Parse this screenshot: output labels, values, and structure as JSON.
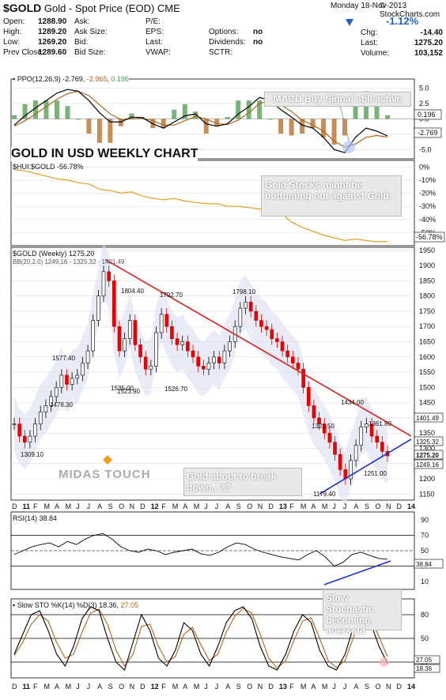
{
  "header": {
    "symbol": "$GOLD",
    "description": "Gold - Spot Price (EOD)",
    "exchange": "CME",
    "date": "Monday  18-Nov-2013",
    "brand": "© StockCharts.com",
    "change_pct": "-1.12%",
    "arrow": "down-triangle-icon"
  },
  "quote": {
    "rows": [
      [
        {
          "l": "Open:",
          "v": "1288.90"
        },
        {
          "l": "Ask:",
          "v": ""
        },
        {
          "l": "P/E:",
          "v": ""
        },
        {
          "l": "",
          "v": ""
        }
      ],
      [
        {
          "l": "High:",
          "v": "1289.20"
        },
        {
          "l": "Ask Size:",
          "v": ""
        },
        {
          "l": "EPS:",
          "v": ""
        },
        {
          "l": "Options:",
          "v": "no"
        }
      ],
      [
        {
          "l": "Low:",
          "v": "1269.20"
        },
        {
          "l": "Bid:",
          "v": ""
        },
        {
          "l": "Last:",
          "v": ""
        },
        {
          "l": "Dividends:",
          "v": "no"
        }
      ],
      [
        {
          "l": "Prev Close:",
          "v": "1289.60"
        },
        {
          "l": "Bid Size:",
          "v": ""
        },
        {
          "l": "VWAP:",
          "v": ""
        },
        {
          "l": "SCTR:",
          "v": ""
        }
      ]
    ],
    "right": [
      {
        "l": "Chg:",
        "v": "-14.40"
      },
      {
        "l": "Last:",
        "v": "1275.20"
      },
      {
        "l": "Volume:",
        "v": "103,152"
      }
    ]
  },
  "chart_data": [
    {
      "type": "line",
      "title": "PPO(12,26,9) -2.769, -2.965, 0.196",
      "legend": {
        "ppo": "-2.769",
        "signal": "-2.965",
        "hist": "0.196"
      },
      "y_ticks": [
        "5.0",
        "2.5",
        "0.0",
        "-2.5",
        "-5.0"
      ],
      "ylim": [
        -6.5,
        6.5
      ],
      "right_labels": [
        "0.196",
        "-2.769"
      ],
      "annotation": "MACD Buy Signal still active",
      "series": [
        {
          "name": "PPO",
          "color": "#000000",
          "values": [
            -1,
            0.5,
            1.8,
            3,
            4.2,
            4.8,
            4.5,
            3,
            1,
            -0.5,
            -0.5,
            0.3,
            0.2,
            -0.8,
            -1.5,
            -0.5,
            0.5,
            0.8,
            -0.8,
            -1.2,
            -0.8,
            0.8,
            2,
            3.5,
            3,
            1.5,
            0.3,
            -1,
            -1.5,
            -3,
            -5,
            -5.5,
            -3,
            -1.5,
            -2,
            -2.769
          ]
        },
        {
          "name": "Signal",
          "color": "#b5651d",
          "values": [
            -1.2,
            -0.3,
            0.8,
            2,
            3.2,
            4.1,
            4.5,
            3.8,
            2.3,
            0.8,
            -0.1,
            0,
            0.1,
            -0.3,
            -1,
            -1,
            -0.3,
            0.4,
            0,
            -0.8,
            -0.9,
            -0.2,
            1,
            2.5,
            3,
            2.3,
            1.2,
            -0.2,
            -1,
            -2,
            -3.6,
            -4.6,
            -4.1,
            -3,
            -2.7,
            -2.965
          ]
        }
      ]
    },
    {
      "type": "line",
      "title": "$HUI:$GOLD -56.78%",
      "y_ticks": [
        "0%",
        "-10%",
        "-20%",
        "-30%",
        "-40%",
        "-50%"
      ],
      "ylim": [
        -60,
        5
      ],
      "right_label": "-56.78%",
      "annotation": "Gold Stocks might be bottoming out against Gold.",
      "values": [
        -2,
        -3,
        -5,
        -7,
        -9,
        -10,
        -12,
        -13,
        -17,
        -18,
        -20,
        -19,
        -22,
        -24,
        -25,
        -24,
        -26,
        -27,
        -28,
        -28,
        -30,
        -30,
        -31,
        -32,
        -33,
        -35,
        -42,
        -46,
        -49,
        -52,
        -54,
        -56,
        -55,
        -56,
        -57,
        -56.78
      ]
    },
    {
      "type": "candlestick",
      "title": "$GOLD (Weekly) 1275.20",
      "subtitle": "BB(20,2.0) 1249.16 - 1325.32 - 1401.49",
      "ylim": [
        1130,
        1960
      ],
      "y_ticks": [
        "1950",
        "1900",
        "1850",
        "1800",
        "1750",
        "1700",
        "1650",
        "1600",
        "1550",
        "1500",
        "1450",
        "1400",
        "1350",
        "1300",
        "1250",
        "1200",
        "1150"
      ],
      "right_labels": [
        "1401.49",
        "1325.32",
        "1275.20",
        "1249.16"
      ],
      "price_labels": [
        "1309.10",
        "1577.40",
        "1478.30",
        "1804.40",
        "1535.00",
        "1792.70",
        "1523.90",
        "1526.70",
        "1798.10",
        "1321.50",
        "1434.00",
        "1361.80",
        "1251.00",
        "1179.40"
      ],
      "watermark": "MIDAS TOUCH",
      "annotation": "Gold about to break down.. ??",
      "x_ticks": [
        "D",
        "11",
        "F",
        "M",
        "A",
        "M",
        "J",
        "J",
        "A",
        "S",
        "O",
        "N",
        "D",
        "12",
        "F",
        "M",
        "A",
        "M",
        "J",
        "J",
        "A",
        "S",
        "O",
        "N",
        "D",
        "13",
        "F",
        "M",
        "A",
        "M",
        "J",
        "J",
        "A",
        "S",
        "O",
        "N",
        "D",
        "14"
      ],
      "closes": [
        1380,
        1340,
        1320,
        1340,
        1380,
        1420,
        1440,
        1470,
        1500,
        1540,
        1510,
        1530,
        1540,
        1580,
        1620,
        1720,
        1800,
        1880,
        1850,
        1700,
        1620,
        1660,
        1720,
        1640,
        1600,
        1560,
        1570,
        1680,
        1740,
        1700,
        1660,
        1640,
        1650,
        1620,
        1600,
        1570,
        1560,
        1580,
        1600,
        1580,
        1620,
        1650,
        1700,
        1760,
        1780,
        1750,
        1720,
        1700,
        1690,
        1660,
        1650,
        1620,
        1600,
        1580,
        1560,
        1500,
        1440,
        1400,
        1380,
        1350,
        1320,
        1280,
        1230,
        1200,
        1260,
        1310,
        1370,
        1380,
        1340,
        1320,
        1290,
        1275.2
      ]
    },
    {
      "type": "line",
      "title": "RSI(14) 38.84",
      "ylim": [
        0,
        100
      ],
      "y_ticks": [
        "90",
        "70",
        "50",
        "30",
        "10"
      ],
      "right_label": "38.84",
      "values": [
        45,
        50,
        55,
        58,
        60,
        55,
        62,
        58,
        65,
        70,
        72,
        65,
        55,
        50,
        48,
        52,
        50,
        45,
        48,
        50,
        52,
        46,
        44,
        48,
        55,
        60,
        58,
        52,
        48,
        45,
        42,
        40,
        38,
        45,
        50,
        42,
        30,
        35,
        45,
        48,
        44,
        40,
        38.84
      ]
    },
    {
      "type": "line",
      "title": "Slow STO %K(14) %D(3) 18.36, 27.05",
      "legend": {
        "k": "18.36",
        "d": "27.05"
      },
      "ylim": [
        0,
        100
      ],
      "y_ticks": [
        "80",
        "50",
        "20"
      ],
      "right_labels": [
        "27.05",
        "18.36"
      ],
      "annotation": "Slow Stochastic becoming oversold",
      "series": [
        {
          "name": "%K",
          "color": "#000000",
          "values": [
            30,
            55,
            80,
            85,
            60,
            30,
            15,
            40,
            75,
            90,
            85,
            50,
            20,
            10,
            45,
            80,
            60,
            25,
            15,
            35,
            70,
            60,
            30,
            15,
            40,
            70,
            85,
            90,
            75,
            40,
            15,
            10,
            30,
            60,
            80,
            70,
            35,
            15,
            10,
            30,
            65,
            85,
            70,
            40,
            18.36
          ]
        },
        {
          "name": "%D",
          "color": "#b5651d",
          "values": [
            28,
            45,
            68,
            80,
            72,
            45,
            25,
            30,
            58,
            82,
            87,
            68,
            35,
            15,
            30,
            65,
            68,
            40,
            20,
            27,
            55,
            64,
            42,
            22,
            30,
            58,
            78,
            88,
            82,
            55,
            25,
            12,
            22,
            48,
            72,
            76,
            50,
            22,
            13,
            22,
            52,
            78,
            76,
            52,
            27.05
          ]
        }
      ],
      "x_ticks": [
        "D",
        "11",
        "F",
        "M",
        "A",
        "M",
        "J",
        "J",
        "A",
        "S",
        "O",
        "N",
        "D",
        "12",
        "F",
        "M",
        "A",
        "M",
        "J",
        "J",
        "A",
        "S",
        "O",
        "N",
        "D",
        "13",
        "F",
        "M",
        "A",
        "M",
        "J",
        "J",
        "A",
        "S",
        "O",
        "N",
        "D",
        "14"
      ]
    }
  ],
  "big_title": "GOLD IN USD WEEKLY CHART"
}
